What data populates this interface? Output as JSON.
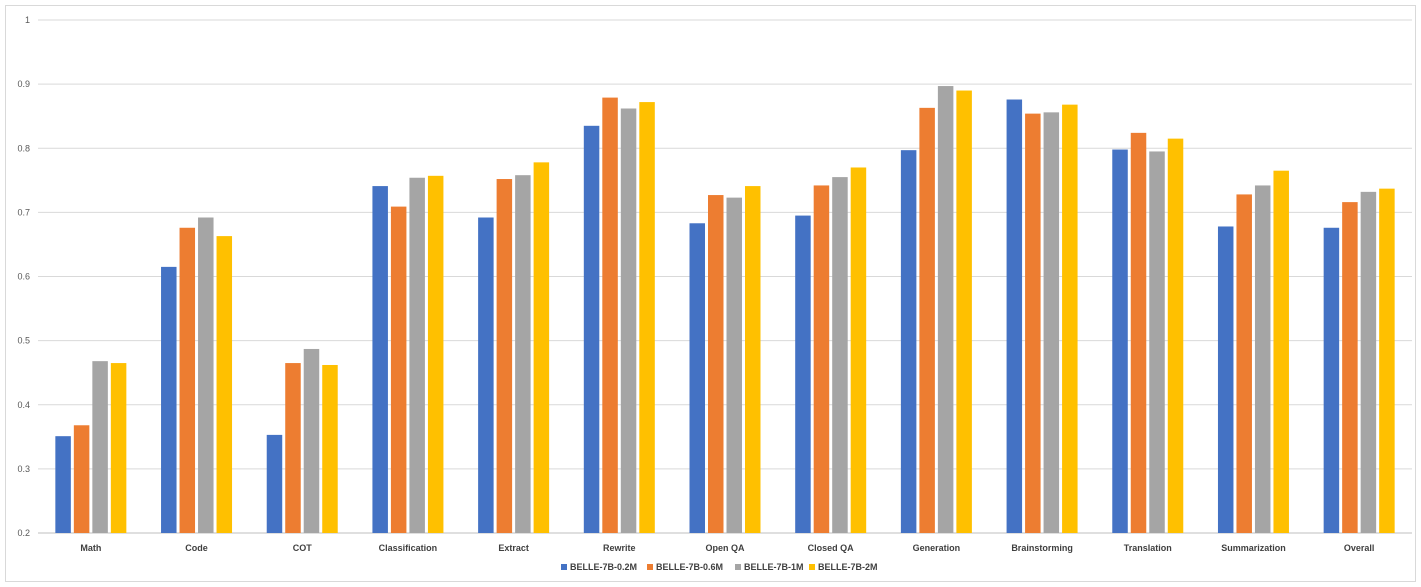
{
  "chart_data": {
    "type": "bar",
    "title": "",
    "xlabel": "",
    "ylabel": "",
    "ylim": [
      0.2,
      1.0
    ],
    "yticks": [
      "0.2",
      "0.3",
      "0.4",
      "0.5",
      "0.6",
      "0.7",
      "0.8",
      "0.9",
      "1"
    ],
    "grid": true,
    "legend_position": "bottom",
    "categories": [
      "Math",
      "Code",
      "COT",
      "Classification",
      "Extract",
      "Rewrite",
      "Open QA",
      "Closed QA",
      "Generation",
      "Brainstorming",
      "Translation",
      "Summarization",
      "Overall"
    ],
    "series": [
      {
        "name": "BELLE-7B-0.2M",
        "color": "#4472c4",
        "values": [
          0.351,
          0.615,
          0.353,
          0.741,
          0.692,
          0.835,
          0.683,
          0.695,
          0.797,
          0.876,
          0.798,
          0.678,
          0.676
        ]
      },
      {
        "name": "BELLE-7B-0.6M",
        "color": "#ed7d31",
        "values": [
          0.368,
          0.676,
          0.465,
          0.709,
          0.752,
          0.879,
          0.727,
          0.742,
          0.863,
          0.854,
          0.824,
          0.728,
          0.716
        ]
      },
      {
        "name": "BELLE-7B-1M",
        "color": "#a5a5a5",
        "values": [
          0.468,
          0.692,
          0.487,
          0.754,
          0.758,
          0.862,
          0.723,
          0.755,
          0.897,
          0.856,
          0.795,
          0.742,
          0.732
        ]
      },
      {
        "name": "BELLE-7B-2M",
        "color": "#ffc000",
        "values": [
          0.465,
          0.663,
          0.462,
          0.757,
          0.778,
          0.872,
          0.741,
          0.77,
          0.89,
          0.868,
          0.815,
          0.765,
          0.737
        ]
      }
    ]
  }
}
